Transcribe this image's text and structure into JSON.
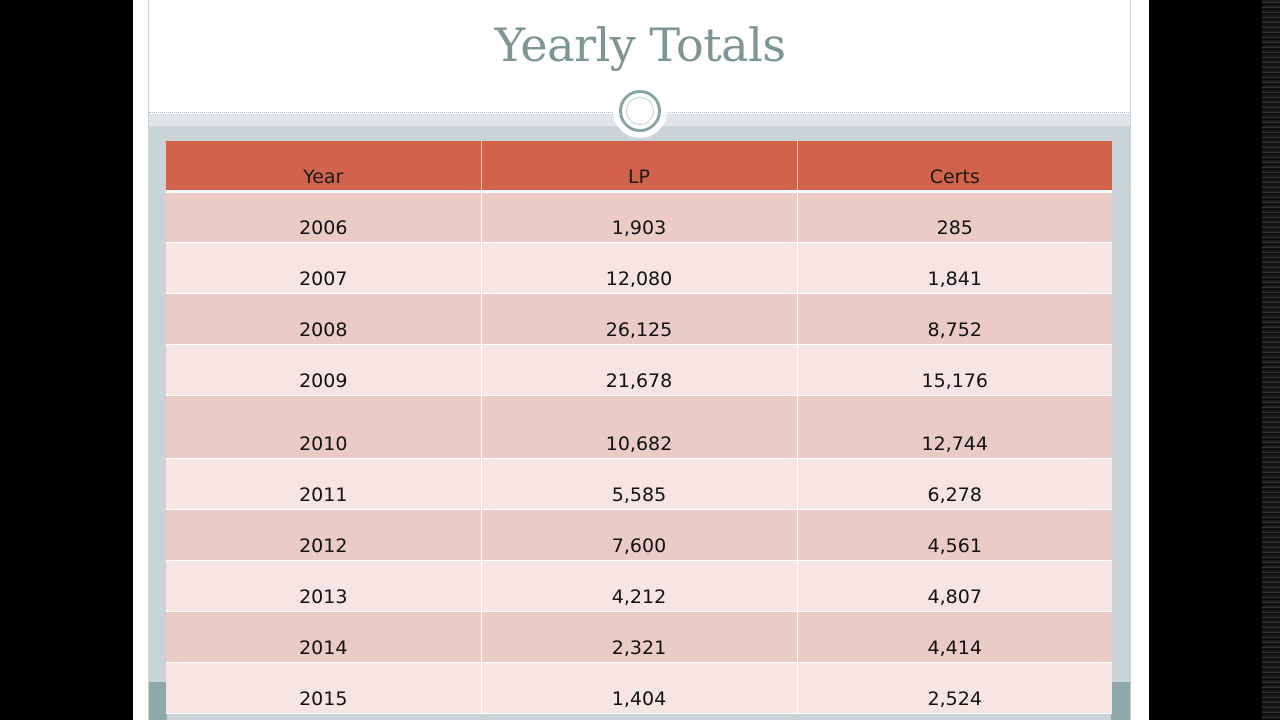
{
  "slide": {
    "title": "Yearly Totals"
  },
  "table": {
    "columns": [
      "Year",
      "LP",
      "Certs"
    ],
    "rows": [
      [
        "2006",
        "1,903",
        "285"
      ],
      [
        "2007",
        "12,080",
        "1,841"
      ],
      [
        "2008",
        "26,125",
        "8,752"
      ],
      [
        "2009",
        "21,678",
        "15,176"
      ],
      [
        "2010",
        "10,682",
        "12,744"
      ],
      [
        "2011",
        "5,585",
        "6,278"
      ],
      [
        "2012",
        "7,600",
        "4,561"
      ],
      [
        "2013",
        "4,212",
        "4,807"
      ],
      [
        "2014",
        "2,321",
        "4,414"
      ],
      [
        "2015",
        "1,404",
        "2,524"
      ]
    ]
  },
  "colors": {
    "header": "#d0634a",
    "row_odd": "#ebcbc6",
    "row_even": "#f6e5e2",
    "title": "#7d9594",
    "accent_teal": "#88a3a3"
  }
}
